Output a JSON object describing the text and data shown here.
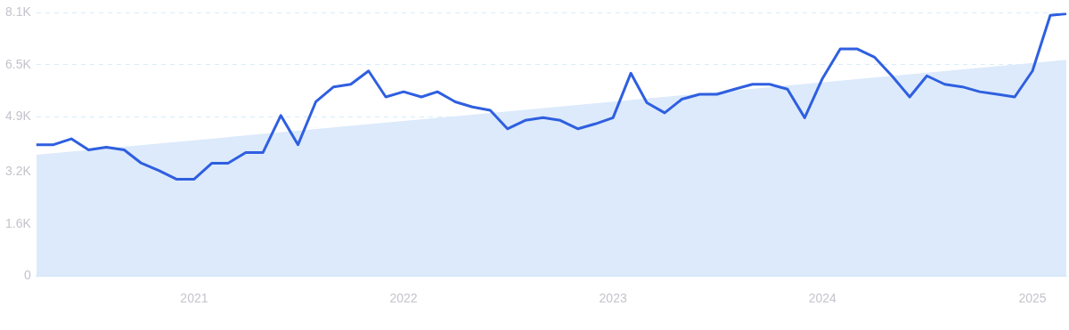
{
  "chart_data": {
    "type": "line",
    "x": [
      "2020-04",
      "2020-05",
      "2020-06",
      "2020-07",
      "2020-08",
      "2020-09",
      "2020-10",
      "2020-11",
      "2020-12",
      "2021-01",
      "2021-02",
      "2021-03",
      "2021-04",
      "2021-05",
      "2021-06",
      "2021-07",
      "2021-08",
      "2021-09",
      "2021-10",
      "2021-11",
      "2021-12",
      "2022-01",
      "2022-02",
      "2022-03",
      "2022-04",
      "2022-05",
      "2022-06",
      "2022-07",
      "2022-08",
      "2022-09",
      "2022-10",
      "2022-11",
      "2022-12",
      "2023-01",
      "2023-02",
      "2023-03",
      "2023-04",
      "2023-05",
      "2023-06",
      "2023-07",
      "2023-08",
      "2023-09",
      "2023-10",
      "2023-11",
      "2023-12",
      "2024-01",
      "2024-02",
      "2024-03",
      "2024-04",
      "2024-05",
      "2024-06",
      "2024-07",
      "2024-08",
      "2024-09",
      "2024-10",
      "2024-11",
      "2024-12",
      "2025-01",
      "2025-02",
      "2025-03"
    ],
    "series": [
      {
        "type": "area",
        "color": "#dceafb",
        "x": [
          "2020-04",
          "2025-03"
        ],
        "values": [
          3730,
          6650
        ]
      },
      {
        "color": "#2f5fe0",
        "values": [
          4040,
          4040,
          4220,
          3880,
          3960,
          3880,
          3470,
          3240,
          2980,
          2980,
          3470,
          3470,
          3800,
          3800,
          4940,
          4040,
          5360,
          5820,
          5900,
          6310,
          5510,
          5670,
          5510,
          5670,
          5360,
          5200,
          5100,
          4530,
          4790,
          4870,
          4790,
          4530,
          4680,
          4870,
          6240,
          5330,
          5020,
          5440,
          5590,
          5590,
          5750,
          5900,
          5900,
          5750,
          4870,
          6080,
          6990,
          6990,
          6730,
          6160,
          5510,
          6160,
          5900,
          5820,
          5670,
          5590,
          5510,
          6310,
          8020,
          8070
        ]
      }
    ],
    "xlim": [
      "2020-04",
      "2025-03"
    ],
    "xticks": [
      "2021",
      "2022",
      "2023",
      "2024",
      "2025"
    ],
    "ylim": [
      0,
      8100
    ],
    "yticks": [
      {
        "value": 0,
        "label": "0"
      },
      {
        "value": 1600,
        "label": "1.6K"
      },
      {
        "value": 3200,
        "label": "3.2K"
      },
      {
        "value": 4900,
        "label": "4.9K"
      },
      {
        "value": 6500,
        "label": "6.5K"
      },
      {
        "value": 8100,
        "label": "8.1K"
      }
    ],
    "grid": "y",
    "legend": false,
    "marker": "none",
    "line_style": "solid"
  }
}
